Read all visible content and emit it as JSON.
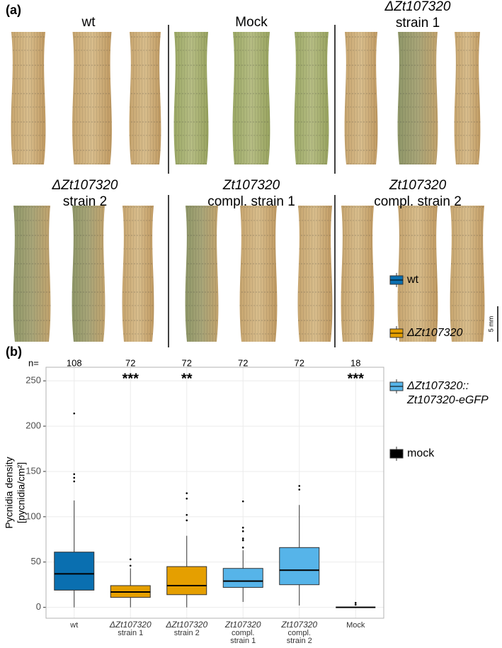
{
  "panel_a": {
    "label": "(a)",
    "titles": [
      [
        "wt"
      ],
      [
        "Mock"
      ],
      [
        "ΔZt107320",
        "strain 1"
      ],
      [
        "ΔZt107320",
        "strain 2"
      ],
      [
        "Zt107320",
        "compl. strain 1"
      ],
      [
        "Zt107320",
        "compl. strain 2"
      ]
    ],
    "scale_bar": "5 mm"
  },
  "chart_data": {
    "type": "box",
    "label": "(b)",
    "y_label": [
      "Pycnidia density",
      "[pycnidia/cm²]"
    ],
    "n_label": "n=",
    "categories": [
      [
        "wt"
      ],
      [
        "ΔZt107320",
        "strain 1"
      ],
      [
        "ΔZt107320",
        "strain 2"
      ],
      [
        "Zt107320",
        "compl.",
        "strain 1"
      ],
      [
        "Zt107320",
        "compl.",
        "strain 2"
      ],
      [
        "Mock"
      ]
    ],
    "n": [
      108,
      72,
      72,
      72,
      72,
      18
    ],
    "significance": [
      null,
      "***",
      "**",
      null,
      null,
      "***"
    ],
    "boxes": [
      {
        "color": "#0a6fb0",
        "min": 0,
        "q1": 19,
        "median": 37,
        "q3": 61,
        "max": 118,
        "outliers": [
          139,
          143,
          147,
          214
        ]
      },
      {
        "color": "#e59f00",
        "min": 0,
        "q1": 11,
        "median": 17,
        "q3": 24,
        "max": 43,
        "outliers": [
          46,
          53
        ]
      },
      {
        "color": "#e59f00",
        "min": 0,
        "q1": 14,
        "median": 24,
        "q3": 45,
        "max": 79,
        "outliers": [
          96,
          102,
          120,
          126
        ]
      },
      {
        "color": "#56b4e9",
        "min": 6,
        "q1": 22,
        "median": 29,
        "q3": 43,
        "max": 63,
        "outliers": [
          66,
          74,
          76,
          84,
          88,
          117
        ]
      },
      {
        "color": "#56b4e9",
        "min": 2,
        "q1": 25,
        "median": 41,
        "q3": 66,
        "max": 113,
        "outliers": [
          130,
          134
        ]
      },
      {
        "color": "#000000",
        "min": 0,
        "q1": 0,
        "median": 0,
        "q3": 0,
        "max": 0,
        "outliers": [
          3,
          5
        ]
      }
    ],
    "legend": [
      {
        "label": [
          "wt"
        ],
        "color": "#0a6fb0"
      },
      {
        "label": [
          "ΔZt107320"
        ],
        "color": "#e59f00"
      },
      {
        "label": [
          "ΔZt107320::",
          "Zt107320-eGFP"
        ],
        "color": "#56b4e9"
      },
      {
        "label": [
          "mock"
        ],
        "color": "#000000"
      }
    ],
    "ylim": [
      -12,
      265
    ],
    "yticks": [
      0,
      50,
      100,
      150,
      200,
      250
    ],
    "grid": true
  }
}
